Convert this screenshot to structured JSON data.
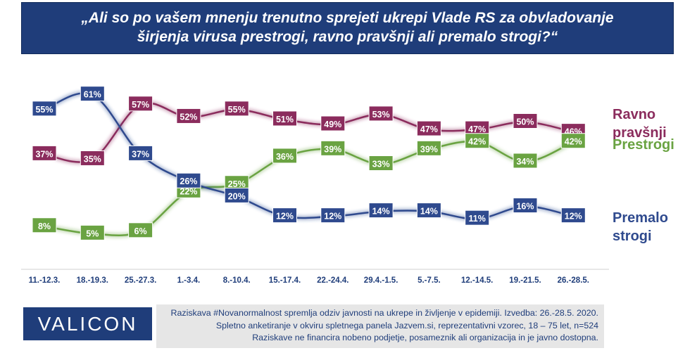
{
  "title_lines": [
    "„Ali so po vašem mnenju trenutno sprejeti ukrepi Vlade RS za obvladovanje",
    "širjenja virusa prestrogi, ravno pravšnji ali premalo strogi?“"
  ],
  "colors": {
    "banner": "#1f3d7a",
    "ravno": "#8b2c5d",
    "prestrogi": "#6aa342",
    "premalo": "#2f4a8e",
    "footer_bg": "#e6e6e6"
  },
  "logo": "VALICON",
  "footnote_lines": [
    "Raziskava #Novanormalnost spremlja odziv javnosti na ukrepe in življenje v epidemiji. Izvedba: 26.-28.5. 2020.",
    "Spletno anketiranje v okviru spletnega panela Jazvem.si, reprezentativni vzorec, 18 – 75 let, n=524",
    "Raziskave ne financira nobeno podjetje, posameznik ali organizacija in je javno dostopna."
  ],
  "chart_data": {
    "type": "line",
    "categories": [
      "11.-12.3.",
      "18.-19.3.",
      "25.-27.3.",
      "1.-3.4.",
      "8.-10.4.",
      "15.-17.4.",
      "22.-24.4.",
      "29.4.-1.5.",
      "5.-7.5.",
      "12.-14.5.",
      "19.-21.5.",
      "26.-28.5."
    ],
    "value_suffix": "%",
    "series": [
      {
        "name_lines": [
          "Ravno",
          "pravšnji"
        ],
        "color": "#8b2c5d",
        "values": [
          37,
          35,
          57,
          52,
          55,
          51,
          49,
          53,
          47,
          47,
          50,
          46
        ]
      },
      {
        "name_lines": [
          "Prestrogi"
        ],
        "color": "#6aa342",
        "values": [
          8,
          5,
          6,
          22,
          25,
          36,
          39,
          33,
          39,
          42,
          34,
          42
        ]
      },
      {
        "name_lines": [
          "Premalo",
          "strogi"
        ],
        "color": "#2f4a8e",
        "values": [
          55,
          61,
          37,
          26,
          20,
          12,
          12,
          14,
          14,
          11,
          16,
          12
        ]
      }
    ]
  }
}
